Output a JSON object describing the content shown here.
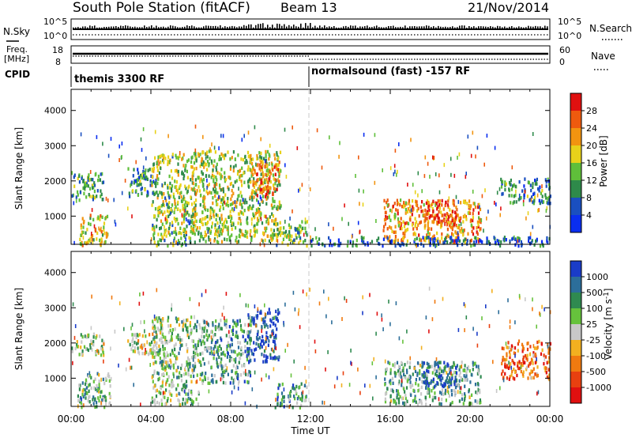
{
  "header": {
    "title": "South Pole Station (fitACF)",
    "beam": "Beam 13",
    "date": "21/Nov/2014"
  },
  "status_panel": {
    "nsky_label": "N.Sky",
    "nsearch_label": "N.Search",
    "noise_ticks": [
      "10^5",
      "10^0"
    ],
    "freq_label_top": "Freq.",
    "freq_label_unit": "[MHz]",
    "freq_ticks": [
      "18",
      "8"
    ],
    "nave_ticks": [
      "60",
      "0"
    ],
    "nave_label": "Nave",
    "cpid_label": "CPID",
    "cpid_segments": [
      {
        "name": "themis 3300 RF",
        "start_hour": 0
      },
      {
        "name": "normalsound (fast) -157 RF",
        "start_hour": 12
      }
    ]
  },
  "chart_data": [
    {
      "type": "heatmap",
      "panel": "power",
      "ylabel": "Slant Range [km]",
      "yticks": [
        1000,
        2000,
        3000,
        4000
      ],
      "ylim": [
        200,
        4600
      ],
      "xlim": [
        0,
        24
      ],
      "colorbar": {
        "label": "Power [dB]",
        "ticks": [
          "4",
          "8",
          "12",
          "16",
          "20",
          "24",
          "28"
        ],
        "colors": [
          "#0a2ef0",
          "#1a4fc0",
          "#2e8a4a",
          "#5fbf3a",
          "#e8d21a",
          "#f29410",
          "#ee5a0e",
          "#e01010"
        ],
        "range": [
          0,
          30
        ]
      },
      "features": [
        {
          "hours": [
            0.0,
            1.6
          ],
          "range_km": [
            1500,
            2300
          ],
          "level": 0.35
        },
        {
          "hours": [
            0.4,
            1.8
          ],
          "range_km": [
            200,
            1100
          ],
          "level": 0.55
        },
        {
          "hours": [
            2.8,
            4.3
          ],
          "range_km": [
            1600,
            2400
          ],
          "level": 0.3
        },
        {
          "hours": [
            4.0,
            6.2
          ],
          "range_km": [
            200,
            2800
          ],
          "level": 0.45
        },
        {
          "hours": [
            6.0,
            10.5
          ],
          "range_km": [
            300,
            2900
          ],
          "level": 0.5
        },
        {
          "hours": [
            9.0,
            10.4
          ],
          "range_km": [
            1600,
            2700
          ],
          "level": 0.75
        },
        {
          "hours": [
            10.2,
            11.8
          ],
          "range_km": [
            200,
            900
          ],
          "level": 0.4
        },
        {
          "hours": [
            15.6,
            20.5
          ],
          "range_km": [
            300,
            1500
          ],
          "level": 0.7
        },
        {
          "hours": [
            17.5,
            19.3
          ],
          "range_km": [
            800,
            1500
          ],
          "level": 0.85
        },
        {
          "hours": [
            21.5,
            24.0
          ],
          "range_km": [
            1400,
            2100
          ],
          "level": 0.3
        },
        {
          "hours": [
            12.0,
            24.0
          ],
          "range_km": [
            200,
            450
          ],
          "level": 0.2
        }
      ]
    },
    {
      "type": "heatmap",
      "panel": "velocity",
      "ylabel": "Slant Range [km]",
      "xlabel": "Time UT",
      "xticks": [
        "00:00",
        "04:00",
        "08:00",
        "12:00",
        "16:00",
        "20:00",
        "00:00"
      ],
      "xtick_hours": [
        0,
        4,
        8,
        12,
        16,
        20,
        24
      ],
      "yticks": [
        1000,
        2000,
        3000,
        4000
      ],
      "ylim": [
        200,
        4600
      ],
      "xlim": [
        0,
        24
      ],
      "colorbar": {
        "label": "Velocity [m s",
        "label_superscript": "-1",
        "label_close": "]",
        "ticks": [
          "1000",
          "500",
          "100",
          "25",
          "-25",
          "-100",
          "-500",
          "-1000"
        ],
        "colors": [
          "#1a3cc8",
          "#2c6e9a",
          "#2f8a50",
          "#66c23c",
          "#c8c8c8",
          "#f2b020",
          "#f07a10",
          "#e84010",
          "#e01010"
        ]
      },
      "features": [
        {
          "hours": [
            0.0,
            1.6
          ],
          "range_km": [
            1700,
            2300
          ],
          "level": 0.45
        },
        {
          "hours": [
            0.3,
            2.0
          ],
          "range_km": [
            200,
            1200
          ],
          "level": 0.35
        },
        {
          "hours": [
            2.8,
            4.3
          ],
          "range_km": [
            1700,
            2300
          ],
          "level": 0.5
        },
        {
          "hours": [
            4.0,
            6.5
          ],
          "range_km": [
            300,
            2800
          ],
          "level": 0.4
        },
        {
          "hours": [
            6.5,
            9.0
          ],
          "range_km": [
            900,
            2700
          ],
          "level": 0.3
        },
        {
          "hours": [
            8.8,
            10.4
          ],
          "range_km": [
            1500,
            3000
          ],
          "level": 0.05
        },
        {
          "hours": [
            10.2,
            11.8
          ],
          "range_km": [
            200,
            900
          ],
          "level": 0.3
        },
        {
          "hours": [
            15.6,
            20.5
          ],
          "range_km": [
            300,
            1500
          ],
          "level": 0.35
        },
        {
          "hours": [
            17.5,
            19.3
          ],
          "range_km": [
            800,
            1500
          ],
          "level": 0.1
        },
        {
          "hours": [
            21.5,
            24.0
          ],
          "range_km": [
            1000,
            2100
          ],
          "level": 0.75
        }
      ]
    }
  ]
}
